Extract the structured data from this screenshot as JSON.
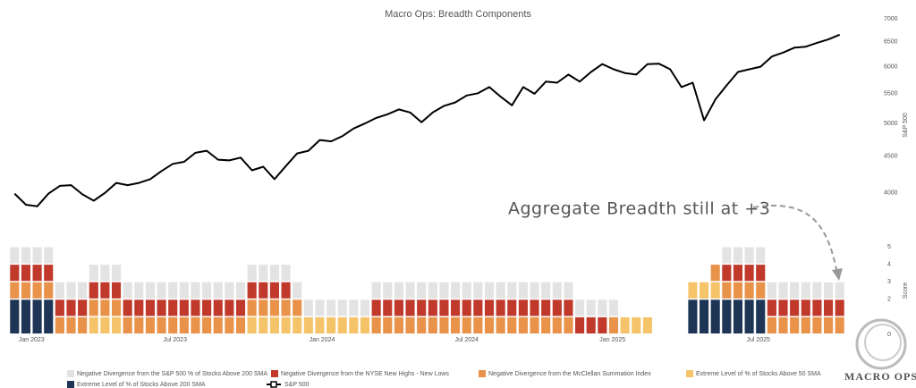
{
  "chart_data": [
    {
      "type": "line",
      "title": "Macro Ops: Breadth Components",
      "y_label": "S&P 500",
      "annotation": "Aggregate Breadth still at +3",
      "log": true,
      "x": [
        0,
        1,
        2,
        3,
        4,
        5,
        6,
        7,
        8,
        9,
        10,
        11,
        12,
        13,
        14,
        15,
        16,
        17,
        18,
        19,
        20,
        21,
        22,
        23,
        24,
        25,
        26,
        27,
        28,
        29,
        30,
        31,
        32,
        33,
        34,
        35,
        36,
        37,
        38,
        39,
        40,
        41,
        42,
        43,
        44,
        45,
        46,
        47,
        48,
        49,
        50,
        51,
        52,
        53,
        54,
        55,
        56,
        57,
        58,
        59,
        60,
        61,
        62,
        63,
        64,
        65,
        66,
        67,
        68,
        69,
        70,
        71,
        72,
        73
      ],
      "xlim": [
        0,
        73
      ],
      "ylim": [
        3730,
        7000
      ],
      "yticks": [
        4000,
        4500,
        5000,
        5500,
        6000,
        6500,
        7000
      ],
      "series": [
        {
          "name": "S&P 500",
          "color": "#000000",
          "values": [
            3990,
            3850,
            3830,
            3990,
            4090,
            4100,
            3980,
            3900,
            4000,
            4130,
            4100,
            4130,
            4180,
            4290,
            4390,
            4420,
            4550,
            4580,
            4450,
            4440,
            4480,
            4300,
            4350,
            4180,
            4360,
            4540,
            4580,
            4740,
            4720,
            4800,
            4920,
            5000,
            5090,
            5150,
            5230,
            5180,
            5020,
            5180,
            5290,
            5350,
            5470,
            5510,
            5620,
            5450,
            5300,
            5620,
            5500,
            5720,
            5700,
            5850,
            5720,
            5900,
            6050,
            5950,
            5880,
            5850,
            6050,
            6060,
            5950,
            5620,
            5700,
            5050,
            5400,
            5650,
            5900,
            5950,
            6000,
            6200,
            6280,
            6380,
            6400,
            6480,
            6550,
            6650
          ]
        }
      ]
    },
    {
      "type": "bar",
      "stacked": true,
      "y_label": "Score",
      "categories": [
        null,
        null,
        null,
        null,
        null,
        null,
        null,
        null,
        null,
        null,
        null,
        null,
        null,
        null,
        null,
        null,
        null,
        null,
        null,
        null,
        null,
        null,
        null,
        null,
        null,
        null,
        null,
        null,
        null,
        null,
        null,
        null,
        null,
        null,
        null,
        null,
        null,
        null,
        null,
        null,
        null,
        null,
        null,
        null,
        null,
        null,
        null,
        null,
        null,
        null,
        null,
        null,
        null,
        null,
        null,
        null,
        null,
        null,
        null,
        null,
        null,
        null,
        null,
        null,
        null,
        null,
        null,
        null,
        null,
        null,
        null,
        null,
        null,
        null
      ],
      "xticks": [
        {
          "value": 2,
          "label": "Jan 2023"
        },
        {
          "value": 14.7,
          "label": "Jul 2023"
        },
        {
          "value": 27.7,
          "label": "Jan 2024"
        },
        {
          "value": 40.5,
          "label": "Jul 2024"
        },
        {
          "value": 53.4,
          "label": "Jan 2025"
        },
        {
          "value": 66.3,
          "label": "Jul 2025"
        }
      ],
      "ylim": [
        0,
        5
      ],
      "yticks": [
        0,
        2,
        3,
        4,
        5
      ],
      "series": [
        {
          "name": "Extreme Level of % of Stocks Above 200 SMA",
          "color": "#1f3556",
          "values": [
            2,
            2,
            2,
            2,
            0,
            0,
            0,
            0,
            0,
            0,
            0,
            0,
            0,
            0,
            0,
            0,
            0,
            0,
            0,
            0,
            0,
            0,
            0,
            0,
            0,
            0,
            0,
            0,
            0,
            0,
            0,
            0,
            0,
            0,
            0,
            0,
            0,
            0,
            0,
            0,
            0,
            0,
            0,
            0,
            0,
            0,
            0,
            0,
            0,
            0,
            0,
            0,
            0,
            0,
            0,
            0,
            0,
            0,
            0,
            0,
            2,
            2,
            2,
            2,
            2,
            2,
            2,
            0,
            0,
            0,
            0,
            0,
            0,
            0
          ]
        },
        {
          "name": "Extreme Level of % of Stocks Above 50 SMA",
          "color": "#f5c46a",
          "values": [
            0,
            0,
            0,
            0,
            0,
            0,
            0,
            1,
            1,
            1,
            0,
            0,
            0,
            0,
            0,
            0,
            0,
            0,
            0,
            0,
            0,
            1,
            1,
            1,
            1,
            1,
            1,
            1,
            1,
            1,
            1,
            1,
            0,
            0,
            0,
            0,
            0,
            0,
            0,
            0,
            0,
            0,
            0,
            0,
            0,
            0,
            0,
            0,
            0,
            0,
            0,
            0,
            0,
            0,
            1,
            1,
            1,
            0,
            0,
            0,
            1,
            1,
            1,
            0,
            0,
            0,
            0,
            0,
            0,
            0,
            0,
            0,
            0,
            0
          ]
        },
        {
          "name": "Negative Divergence from the McClellan Summation Index",
          "color": "#e8924a",
          "values": [
            1,
            1,
            1,
            1,
            1,
            1,
            1,
            1,
            1,
            1,
            1,
            1,
            1,
            1,
            1,
            1,
            1,
            1,
            1,
            1,
            1,
            1,
            1,
            1,
            1,
            1,
            0,
            0,
            0,
            0,
            0,
            0,
            1,
            1,
            1,
            1,
            1,
            1,
            1,
            1,
            1,
            1,
            1,
            1,
            1,
            1,
            1,
            1,
            1,
            1,
            0,
            0,
            0,
            1,
            0,
            0,
            0,
            0,
            0,
            0,
            0,
            0,
            1,
            1,
            1,
            1,
            1,
            1,
            1,
            1,
            1,
            1,
            1,
            1
          ]
        },
        {
          "name": "Negative Divergence from the NYSE New Highs - New Lows",
          "color": "#c0392b",
          "values": [
            1,
            1,
            1,
            1,
            1,
            1,
            1,
            1,
            1,
            1,
            1,
            1,
            1,
            1,
            1,
            1,
            1,
            1,
            1,
            1,
            1,
            1,
            1,
            1,
            1,
            0,
            0,
            0,
            0,
            0,
            0,
            0,
            1,
            1,
            1,
            1,
            1,
            1,
            1,
            1,
            1,
            1,
            1,
            1,
            1,
            1,
            1,
            1,
            1,
            1,
            1,
            1,
            1,
            0,
            0,
            0,
            0,
            0,
            0,
            0,
            0,
            0,
            0,
            1,
            1,
            1,
            1,
            1,
            1,
            1,
            1,
            1,
            1,
            1
          ]
        },
        {
          "name": "Negative Divergence from the S&P 500 % of Stocks Above 200 SMA",
          "color": "#e3e3e3",
          "values": [
            1,
            1,
            1,
            1,
            1,
            1,
            1,
            1,
            1,
            1,
            1,
            1,
            1,
            1,
            1,
            1,
            1,
            1,
            1,
            1,
            1,
            1,
            1,
            1,
            1,
            1,
            1,
            1,
            1,
            1,
            1,
            1,
            1,
            1,
            1,
            1,
            1,
            1,
            1,
            1,
            1,
            1,
            1,
            1,
            1,
            1,
            1,
            1,
            1,
            1,
            1,
            1,
            1,
            1,
            0,
            0,
            0,
            0,
            0,
            0,
            0,
            0,
            0,
            1,
            1,
            1,
            1,
            1,
            1,
            1,
            1,
            1,
            1,
            1
          ]
        }
      ]
    }
  ],
  "logo": {
    "text": "MACRO OPS"
  }
}
